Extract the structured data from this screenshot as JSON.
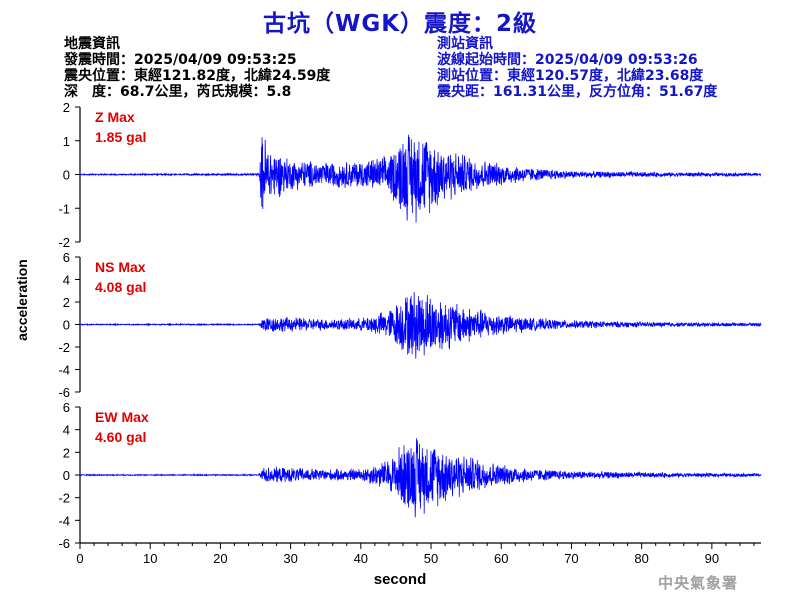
{
  "title": "古坑（WGK）震度：2級",
  "quake_info": {
    "heading": "地震資訊",
    "origin_time": "發震時間：2025/04/09 09:53:25",
    "epicenter": "震央位置：東經121.82度，北緯24.59度",
    "depth_mag": "深　度：68.7公里，芮氏規模：5.8"
  },
  "station_info": {
    "heading": "測站資訊",
    "wave_start": "波線起始時間：2025/04/09 09:53:26",
    "station_loc": "測站位置：東經120.57度，北緯23.68度",
    "distance": "震央距：161.31公里，反方位角：51.67度"
  },
  "agency": "中央氣象署",
  "colors": {
    "trace": "#0000ff",
    "max_label": "#e00000",
    "title": "#1414c8"
  },
  "chart_data": {
    "type": "line",
    "xlabel": "second",
    "ylabel": "acceleration",
    "xlim": [
      0,
      97
    ],
    "xticks": [
      "0",
      "10",
      "20",
      "30",
      "40",
      "50",
      "60",
      "70",
      "80",
      "90"
    ],
    "panels": [
      {
        "component": "Z",
        "max_label": "Z Max",
        "max_value": "1.85 gal",
        "ylim": [
          -2,
          2
        ],
        "yticks": [
          "2",
          "1",
          "0",
          "-1",
          "-2"
        ],
        "envelope": {
          "x": [
            0,
            25.5,
            26.0,
            27,
            30,
            35,
            40,
            44,
            46,
            48,
            52,
            56,
            60,
            65,
            70,
            80,
            90,
            97
          ],
          "a": [
            0.02,
            0.03,
            1.5,
            0.9,
            0.5,
            0.4,
            0.45,
            0.6,
            1.4,
            1.5,
            0.9,
            0.55,
            0.35,
            0.2,
            0.12,
            0.08,
            0.06,
            0.05
          ]
        }
      },
      {
        "component": "NS",
        "max_label": "NS Max",
        "max_value": "4.08 gal",
        "ylim": [
          -6,
          6
        ],
        "yticks": [
          "6",
          "4",
          "2",
          "0",
          "-2",
          "-4",
          "-6"
        ],
        "envelope": {
          "x": [
            0,
            25.5,
            26.0,
            30,
            35,
            40,
            44,
            46,
            48,
            50,
            55,
            60,
            65,
            70,
            80,
            90,
            97
          ],
          "a": [
            0.05,
            0.06,
            0.8,
            0.7,
            0.55,
            0.6,
            1.4,
            2.8,
            3.6,
            3.0,
            1.8,
            1.0,
            0.6,
            0.4,
            0.25,
            0.18,
            0.15
          ]
        }
      },
      {
        "component": "EW",
        "max_label": "EW Max",
        "max_value": "4.60 gal",
        "ylim": [
          -6,
          6
        ],
        "yticks": [
          "6",
          "4",
          "2",
          "0",
          "-2",
          "-4",
          "-6"
        ],
        "envelope": {
          "x": [
            0,
            25.5,
            26.0,
            30,
            35,
            40,
            44,
            46,
            48,
            50,
            55,
            60,
            65,
            70,
            80,
            90,
            97
          ],
          "a": [
            0.05,
            0.06,
            0.8,
            0.7,
            0.55,
            0.6,
            1.5,
            3.2,
            4.0,
            3.2,
            1.9,
            1.0,
            0.6,
            0.4,
            0.25,
            0.18,
            0.15
          ]
        }
      }
    ]
  }
}
